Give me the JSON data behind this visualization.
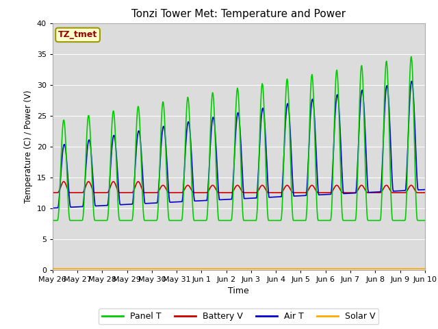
{
  "title": "Tonzi Tower Met: Temperature and Power",
  "xlabel": "Time",
  "ylabel": "Temperature (C) / Power (V)",
  "ylim": [
    0,
    40
  ],
  "yticks": [
    0,
    5,
    10,
    15,
    20,
    25,
    30,
    35,
    40
  ],
  "bg_color": "#dcdcdc",
  "panel_t_color": "#00cc00",
  "battery_v_color": "#cc0000",
  "air_t_color": "#0000cc",
  "solar_v_color": "#ffaa00",
  "annotation_text": "TZ_tmet",
  "annotation_color": "#990000",
  "annotation_bg": "#ffffcc",
  "annotation_border": "#999900",
  "legend_labels": [
    "Panel T",
    "Battery V",
    "Air T",
    "Solar V"
  ],
  "n_days": 15,
  "n_per_day": 48
}
